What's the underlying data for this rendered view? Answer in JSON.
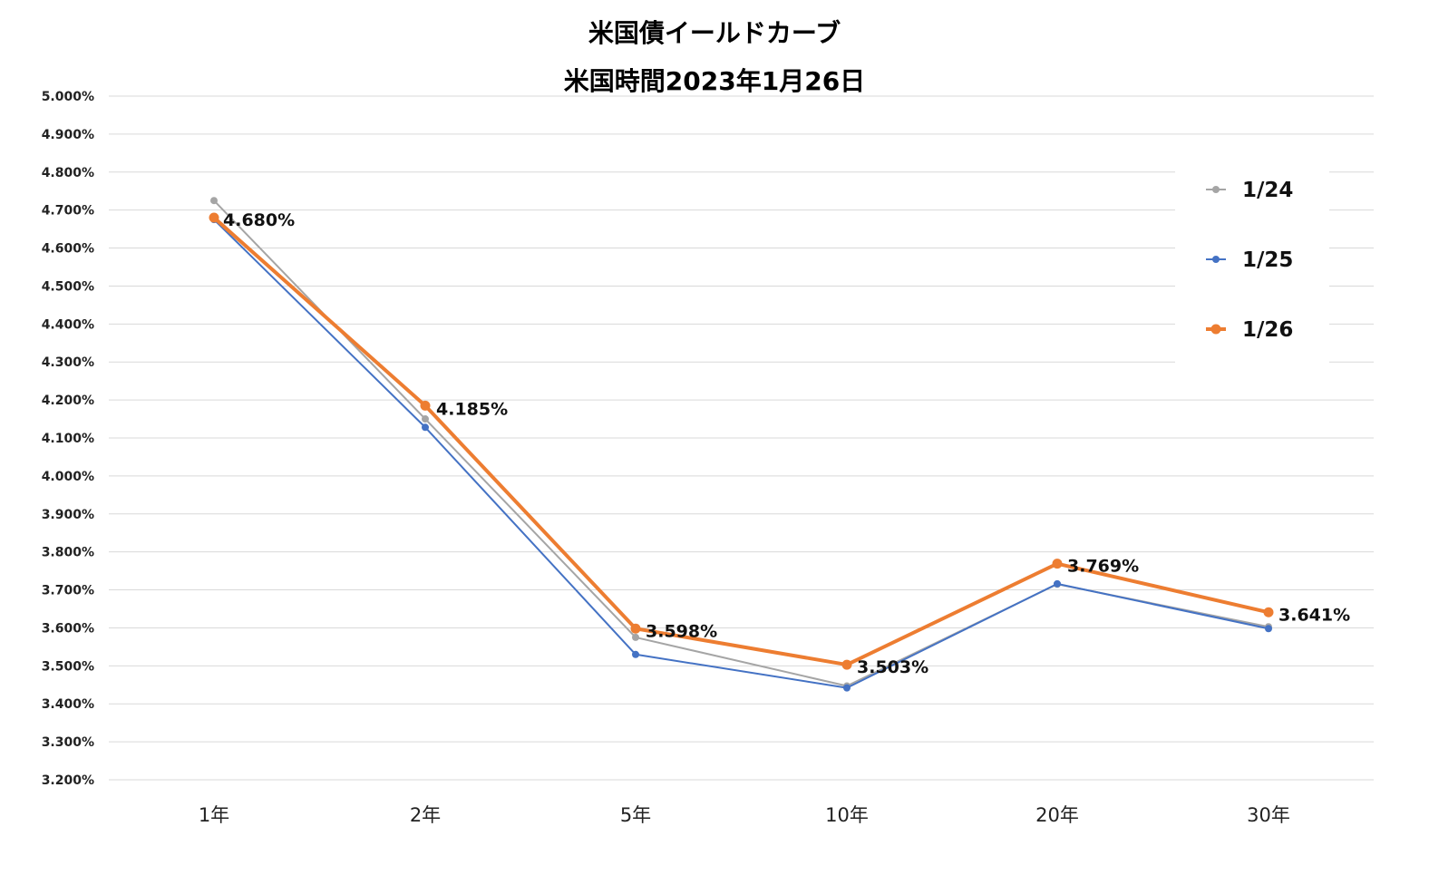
{
  "chart_data": {
    "type": "line",
    "title": "米国債イールドカーブ",
    "subtitle": "米国時間2023年1月26日",
    "categories": [
      "1年",
      "2年",
      "5年",
      "10年",
      "20年",
      "30年"
    ],
    "ylim": [
      3.2,
      5.0
    ],
    "y_tick_step": 0.1,
    "y_tick_format": "%.3f%",
    "grid": true,
    "legend_position": "right",
    "series": [
      {
        "name": "1/24",
        "color": "#a5a5a5",
        "values": [
          4.725,
          4.15,
          3.575,
          3.447,
          3.715,
          3.603
        ]
      },
      {
        "name": "1/25",
        "color": "#4472c4",
        "values": [
          4.675,
          4.128,
          3.53,
          3.442,
          3.716,
          3.598
        ]
      },
      {
        "name": "1/26",
        "color": "#ed7d31",
        "values": [
          4.68,
          4.185,
          3.598,
          3.503,
          3.769,
          3.641
        ],
        "data_labels": [
          "4.680%",
          "4.185%",
          "3.598%",
          "3.503%",
          "3.769%",
          "3.641%"
        ]
      }
    ]
  }
}
